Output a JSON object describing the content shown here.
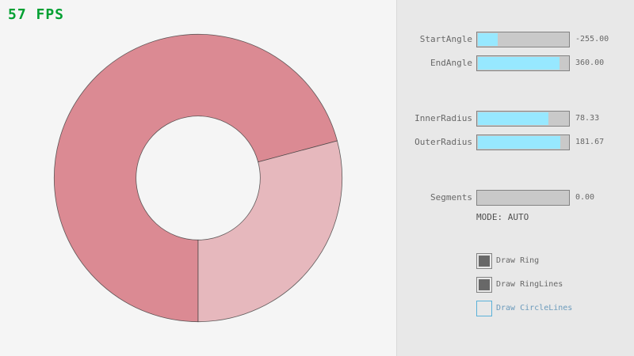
{
  "fps": "57 FPS",
  "ring": {
    "start_angle": -255,
    "end_angle": 360,
    "inner_radius": 78.33,
    "outer_radius": 181.67,
    "colors": {
      "single": "#e6b8bd",
      "overlap": "#db8a93",
      "lines": "#3c3c3c"
    }
  },
  "controls": {
    "sliders": [
      {
        "label": "StartAngle",
        "value": "-255.00",
        "fraction": 0.217
      },
      {
        "label": "EndAngle",
        "value": "360.00",
        "fraction": 0.9
      },
      {
        "label": "InnerRadius",
        "value": "78.33",
        "fraction": 0.783
      },
      {
        "label": "OuterRadius",
        "value": "181.67",
        "fraction": 0.908
      },
      {
        "label": "Segments",
        "value": "0.00",
        "fraction": 0
      }
    ],
    "mode": "MODE: AUTO",
    "checkboxes": [
      {
        "label": "Draw Ring",
        "checked": true
      },
      {
        "label": "Draw RingLines",
        "checked": true
      },
      {
        "label": "Draw CircleLines",
        "checked": false
      }
    ]
  }
}
